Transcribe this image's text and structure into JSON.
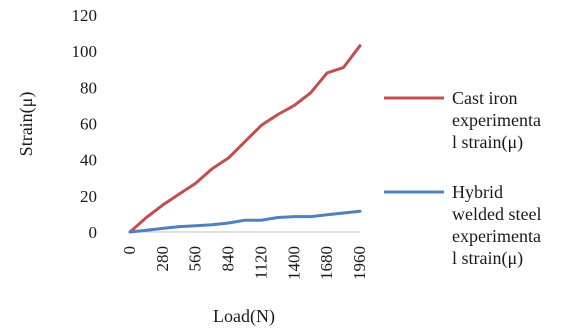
{
  "chart_data": {
    "type": "line",
    "title": "",
    "xlabel": "Load(N)",
    "ylabel": "Strain(μ)",
    "ylim": [
      0,
      120
    ],
    "yticks": [
      0,
      20,
      40,
      60,
      80,
      100,
      120
    ],
    "x": [
      0,
      140,
      280,
      420,
      560,
      700,
      840,
      980,
      1120,
      1260,
      1400,
      1540,
      1680,
      1820,
      1960
    ],
    "xtick_labels": [
      "0",
      "280",
      "560",
      "840",
      "1120",
      "1400",
      "1680",
      "1960"
    ],
    "grid": false,
    "legend_position": "right",
    "series": [
      {
        "name_lines": [
          "Cast iron",
          "experimenta",
          "l strain(μ)"
        ],
        "color": "#c0504d",
        "values": [
          0,
          8,
          15,
          21,
          27,
          35,
          41,
          50,
          59,
          65,
          70,
          77,
          88,
          91,
          103
        ]
      },
      {
        "name_lines": [
          "Hybrid",
          "welded steel",
          "experimenta",
          "l strain(μ)"
        ],
        "color": "#4f81bd",
        "values": [
          0,
          1,
          2,
          3,
          3.5,
          4,
          5,
          6.5,
          6.5,
          8,
          8.5,
          8.5,
          9.5,
          10.5,
          11.5
        ]
      }
    ]
  }
}
